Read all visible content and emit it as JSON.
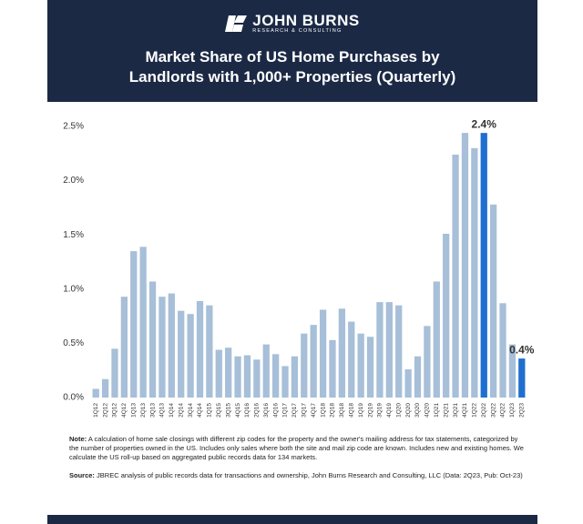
{
  "brand": {
    "name": "JOHN BURNS",
    "tagline": "RESEARCH & CONSULTING"
  },
  "chart_data": {
    "type": "bar",
    "title": [
      "Market Share of US Home Purchases by",
      "Landlords with 1,000+ Properties (Quarterly)"
    ],
    "categories": [
      "1Q12",
      "2Q12",
      "3Q12",
      "4Q12",
      "1Q13",
      "2Q13",
      "3Q13",
      "4Q13",
      "1Q14",
      "2Q14",
      "3Q14",
      "4Q14",
      "1Q15",
      "2Q15",
      "3Q15",
      "4Q15",
      "1Q16",
      "2Q16",
      "3Q16",
      "4Q16",
      "1Q17",
      "2Q17",
      "3Q17",
      "4Q17",
      "1Q18",
      "2Q18",
      "3Q18",
      "4Q18",
      "1Q19",
      "2Q19",
      "3Q19",
      "4Q19",
      "1Q20",
      "2Q20",
      "3Q20",
      "4Q20",
      "1Q21",
      "2Q21",
      "3Q21",
      "4Q21",
      "1Q22",
      "2Q22",
      "3Q22",
      "4Q22",
      "1Q23",
      "2Q23"
    ],
    "values": [
      0.08,
      0.17,
      0.45,
      0.93,
      1.35,
      1.39,
      1.07,
      0.93,
      0.96,
      0.8,
      0.77,
      0.89,
      0.85,
      0.44,
      0.46,
      0.38,
      0.39,
      0.35,
      0.49,
      0.4,
      0.29,
      0.38,
      0.59,
      0.67,
      0.81,
      0.53,
      0.82,
      0.7,
      0.59,
      0.56,
      0.88,
      0.88,
      0.85,
      0.26,
      0.38,
      0.66,
      1.07,
      1.51,
      2.24,
      2.44,
      2.3,
      2.44,
      1.78,
      0.87,
      0.49,
      0.36
    ],
    "value_labels": [
      null,
      null,
      null,
      null,
      null,
      null,
      null,
      null,
      null,
      null,
      null,
      null,
      null,
      null,
      null,
      null,
      null,
      null,
      null,
      null,
      null,
      null,
      null,
      null,
      null,
      null,
      null,
      null,
      null,
      null,
      null,
      null,
      null,
      null,
      null,
      null,
      null,
      null,
      null,
      null,
      null,
      "2.4%",
      null,
      null,
      null,
      "0.4%"
    ],
    "colors": [
      "#a7bfd8",
      "#a7bfd8",
      "#a7bfd8",
      "#a7bfd8",
      "#a7bfd8",
      "#a7bfd8",
      "#a7bfd8",
      "#a7bfd8",
      "#a7bfd8",
      "#a7bfd8",
      "#a7bfd8",
      "#a7bfd8",
      "#a7bfd8",
      "#a7bfd8",
      "#a7bfd8",
      "#a7bfd8",
      "#a7bfd8",
      "#a7bfd8",
      "#a7bfd8",
      "#a7bfd8",
      "#a7bfd8",
      "#a7bfd8",
      "#a7bfd8",
      "#a7bfd8",
      "#a7bfd8",
      "#a7bfd8",
      "#a7bfd8",
      "#a7bfd8",
      "#a7bfd8",
      "#a7bfd8",
      "#a7bfd8",
      "#a7bfd8",
      "#a7bfd8",
      "#a7bfd8",
      "#a7bfd8",
      "#a7bfd8",
      "#a7bfd8",
      "#a7bfd8",
      "#a7bfd8",
      "#a7bfd8",
      "#a7bfd8",
      "#1f6fd1",
      "#a7bfd8",
      "#a7bfd8",
      "#a7bfd8",
      "#1f6fd1"
    ],
    "ylim": [
      0,
      2.5
    ],
    "yticks": [
      {
        "value": 0,
        "label": "0.0%"
      },
      {
        "value": 0.5,
        "label": "0.5%"
      },
      {
        "value": 1,
        "label": "1.0%"
      },
      {
        "value": 1.5,
        "label": "1.5%"
      },
      {
        "value": 2,
        "label": "2.0%"
      },
      {
        "value": 2.5,
        "label": "2.5%"
      }
    ],
    "grid": false
  },
  "note": {
    "label": "Note:",
    "text": "A calculation of home sale closings with different zip codes for the property and the owner's mailing address for tax statements, categorized by the number of properties owned in the US. Includes only sales where both the site and mail zip code are known. Includes new and existing homes. We calculate the US roll-up based on aggregated public records data for 134 markets."
  },
  "source": {
    "label": "Source:",
    "text": "JBREC analysis of public records data for transactions and ownership, John Burns Research and Consulting, LLC (Data: 2Q23, Pub: Oct-23)"
  }
}
